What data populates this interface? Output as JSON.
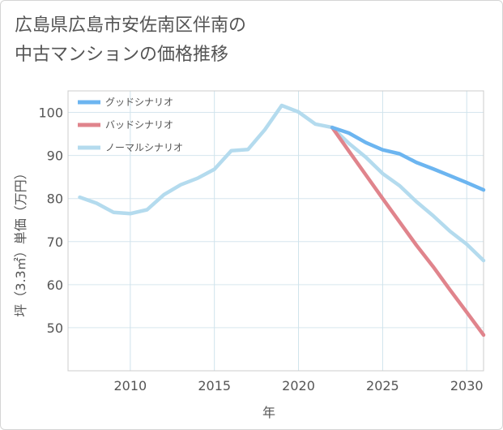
{
  "title_lines": [
    "広島県広島市安佐南区伴南の",
    "中古マンションの価格推移"
  ],
  "chart_data": {
    "type": "line",
    "xlabel": "年",
    "ylabel": "坪（3.3㎡）単価（万円）",
    "xlim": [
      2006.3,
      2031
    ],
    "ylim": [
      40,
      105
    ],
    "x_ticks": [
      2010,
      2015,
      2020,
      2025,
      2030
    ],
    "y_ticks": [
      50,
      60,
      70,
      80,
      90,
      100
    ],
    "grid": true,
    "legend_position": "top-left",
    "series": [
      {
        "name": "グッドシナリオ",
        "color": "#6cb5f0",
        "x": [
          2022,
          2023,
          2024,
          2025,
          2026,
          2027,
          2028,
          2029,
          2030,
          2031
        ],
        "y": [
          96.5,
          95.2,
          93.0,
          91.3,
          90.4,
          88.4,
          86.9,
          85.3,
          83.7,
          82.0
        ]
      },
      {
        "name": "バッドシナリオ",
        "color": "#e0848c",
        "x": [
          2022,
          2023,
          2024,
          2025,
          2026,
          2027,
          2028,
          2029,
          2030,
          2031
        ],
        "y": [
          96.5,
          91.0,
          85.5,
          80.0,
          74.6,
          69.2,
          64.2,
          58.8,
          53.6,
          48.3
        ]
      },
      {
        "name": "ノーマルシナリオ",
        "color": "#b4dbee",
        "x": [
          2007,
          2008,
          2009,
          2010,
          2011,
          2012,
          2013,
          2014,
          2015,
          2016,
          2017,
          2018,
          2019,
          2020,
          2021,
          2022,
          2023,
          2024,
          2025,
          2026,
          2027,
          2028,
          2029,
          2030,
          2031
        ],
        "y": [
          80.3,
          78.9,
          76.8,
          76.5,
          77.4,
          80.9,
          83.2,
          84.7,
          86.8,
          91.1,
          91.4,
          96.0,
          101.6,
          100.1,
          97.3,
          96.5,
          92.8,
          89.6,
          85.8,
          83.0,
          79.3,
          76.0,
          72.4,
          69.4,
          65.6
        ]
      }
    ]
  }
}
